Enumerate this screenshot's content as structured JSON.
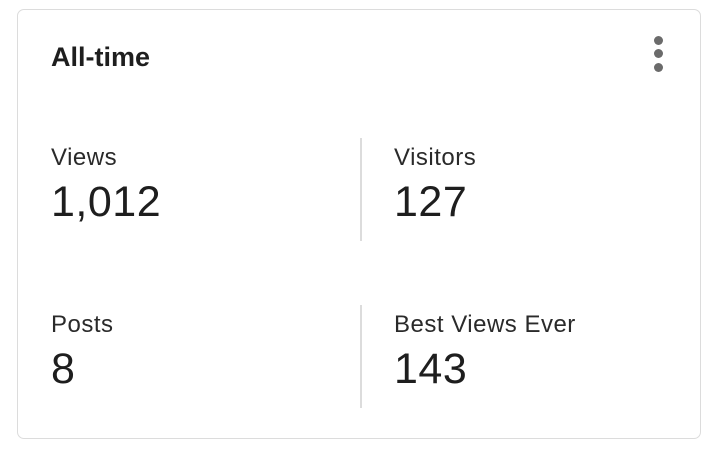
{
  "card": {
    "title": "All-time",
    "menu_icon": "more-vertical-icon",
    "stats": [
      {
        "label": "Views",
        "value": "1,012"
      },
      {
        "label": "Visitors",
        "value": "127"
      },
      {
        "label": "Posts",
        "value": "8"
      },
      {
        "label": "Best Views Ever",
        "value": "143"
      }
    ]
  }
}
